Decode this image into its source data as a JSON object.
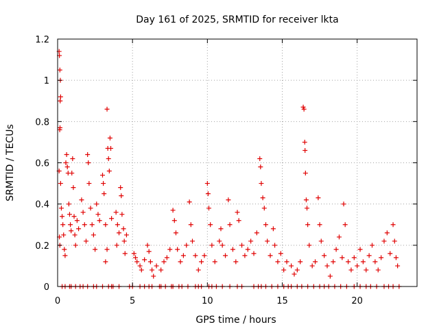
{
  "chart_data": {
    "type": "scatter",
    "title": "Day 161 of 2025, SRMTID for receiver lkta",
    "xlabel": "GPS time / hours",
    "ylabel": "SRMTID / TECUs",
    "xlim": [
      0,
      24
    ],
    "ylim": [
      0,
      1.2
    ],
    "grid": true,
    "xticks": [
      0,
      5,
      10,
      15,
      20
    ],
    "xtick_labels": [
      "0",
      "5",
      "10",
      "15",
      "20"
    ],
    "yticks": [
      0,
      0.2,
      0.4,
      0.6,
      0.8,
      1.0,
      1.2
    ],
    "ytick_labels": [
      "0",
      "0.2",
      "0.4",
      "0.6",
      "0.8",
      "1",
      "1.2"
    ],
    "marker": "+",
    "series": [
      {
        "name": "SRMTID",
        "color": "#e00000",
        "points": [
          [
            0.1,
            1.14
          ],
          [
            0.12,
            1.12
          ],
          [
            0.15,
            1.05
          ],
          [
            0.18,
            1.0
          ],
          [
            0.2,
            0.92
          ],
          [
            0.17,
            0.9
          ],
          [
            0.16,
            0.77
          ],
          [
            0.14,
            0.76
          ],
          [
            0.1,
            0.56
          ],
          [
            0.2,
            0.5
          ],
          [
            0.25,
            0.38
          ],
          [
            0.12,
            0.24
          ],
          [
            0.15,
            0.2
          ],
          [
            0.3,
            0.34
          ],
          [
            0.35,
            0.3
          ],
          [
            0.4,
            0.25
          ],
          [
            0.45,
            0.18
          ],
          [
            0.5,
            0.15
          ],
          [
            0.55,
            0.6
          ],
          [
            0.6,
            0.64
          ],
          [
            0.65,
            0.58
          ],
          [
            0.7,
            0.55
          ],
          [
            0.75,
            0.4
          ],
          [
            0.8,
            0.35
          ],
          [
            0.85,
            0.3
          ],
          [
            0.9,
            0.27
          ],
          [
            0.95,
            0.55
          ],
          [
            1.0,
            0.62
          ],
          [
            1.05,
            0.48
          ],
          [
            1.1,
            0.34
          ],
          [
            1.15,
            0.25
          ],
          [
            1.2,
            0.2
          ],
          [
            1.3,
            0.32
          ],
          [
            1.4,
            0.28
          ],
          [
            1.6,
            0.42
          ],
          [
            1.7,
            0.36
          ],
          [
            1.8,
            0.3
          ],
          [
            1.9,
            0.22
          ],
          [
            2.0,
            0.64
          ],
          [
            2.05,
            0.6
          ],
          [
            2.1,
            0.5
          ],
          [
            2.2,
            0.38
          ],
          [
            2.3,
            0.3
          ],
          [
            2.4,
            0.25
          ],
          [
            2.5,
            0.18
          ],
          [
            2.6,
            0.4
          ],
          [
            2.7,
            0.35
          ],
          [
            2.8,
            0.32
          ],
          [
            3.0,
            0.54
          ],
          [
            3.05,
            0.5
          ],
          [
            3.1,
            0.45
          ],
          [
            3.2,
            0.3
          ],
          [
            3.3,
            0.86
          ],
          [
            3.35,
            0.67
          ],
          [
            3.4,
            0.62
          ],
          [
            3.45,
            0.56
          ],
          [
            3.5,
            0.72
          ],
          [
            3.55,
            0.67
          ],
          [
            3.6,
            0.33
          ],
          [
            3.3,
            0.18
          ],
          [
            3.2,
            0.12
          ],
          [
            3.9,
            0.36
          ],
          [
            4.0,
            0.3
          ],
          [
            4.1,
            0.26
          ],
          [
            4.2,
            0.48
          ],
          [
            4.25,
            0.44
          ],
          [
            4.3,
            0.35
          ],
          [
            4.4,
            0.28
          ],
          [
            4.45,
            0.22
          ],
          [
            4.5,
            0.16
          ],
          [
            4.6,
            0.25
          ],
          [
            3.95,
            0.2
          ],
          [
            5.1,
            0.16
          ],
          [
            5.2,
            0.14
          ],
          [
            5.3,
            0.12
          ],
          [
            5.5,
            0.1
          ],
          [
            5.6,
            0.08
          ],
          [
            5.8,
            0.13
          ],
          [
            6.0,
            0.2
          ],
          [
            6.1,
            0.17
          ],
          [
            6.2,
            0.12
          ],
          [
            6.3,
            0.08
          ],
          [
            6.4,
            0.05
          ],
          [
            6.6,
            0.1
          ],
          [
            6.9,
            0.08
          ],
          [
            7.1,
            0.12
          ],
          [
            7.3,
            0.14
          ],
          [
            7.5,
            0.18
          ],
          [
            7.7,
            0.37
          ],
          [
            7.8,
            0.32
          ],
          [
            7.9,
            0.26
          ],
          [
            8.0,
            0.18
          ],
          [
            8.2,
            0.12
          ],
          [
            8.4,
            0.15
          ],
          [
            8.6,
            0.2
          ],
          [
            8.8,
            0.41
          ],
          [
            8.9,
            0.3
          ],
          [
            9.0,
            0.22
          ],
          [
            9.2,
            0.15
          ],
          [
            9.4,
            0.08
          ],
          [
            9.6,
            0.12
          ],
          [
            9.8,
            0.15
          ],
          [
            10.0,
            0.5
          ],
          [
            10.05,
            0.45
          ],
          [
            10.1,
            0.38
          ],
          [
            10.2,
            0.3
          ],
          [
            10.3,
            0.2
          ],
          [
            10.5,
            0.12
          ],
          [
            10.8,
            0.22
          ],
          [
            10.9,
            0.28
          ],
          [
            11.0,
            0.2
          ],
          [
            11.2,
            0.15
          ],
          [
            11.4,
            0.42
          ],
          [
            11.5,
            0.3
          ],
          [
            11.7,
            0.18
          ],
          [
            11.9,
            0.12
          ],
          [
            12.0,
            0.36
          ],
          [
            12.1,
            0.32
          ],
          [
            12.3,
            0.2
          ],
          [
            12.5,
            0.15
          ],
          [
            12.7,
            0.18
          ],
          [
            12.9,
            0.22
          ],
          [
            13.1,
            0.16
          ],
          [
            13.3,
            0.26
          ],
          [
            13.5,
            0.62
          ],
          [
            13.55,
            0.58
          ],
          [
            13.6,
            0.5
          ],
          [
            13.7,
            0.43
          ],
          [
            13.8,
            0.38
          ],
          [
            13.9,
            0.3
          ],
          [
            14.0,
            0.22
          ],
          [
            14.2,
            0.15
          ],
          [
            14.4,
            0.28
          ],
          [
            14.5,
            0.2
          ],
          [
            14.7,
            0.12
          ],
          [
            14.9,
            0.16
          ],
          [
            15.1,
            0.08
          ],
          [
            15.3,
            0.12
          ],
          [
            15.6,
            0.1
          ],
          [
            15.8,
            0.06
          ],
          [
            16.0,
            0.08
          ],
          [
            16.2,
            0.12
          ],
          [
            16.4,
            0.87
          ],
          [
            16.45,
            0.86
          ],
          [
            16.5,
            0.7
          ],
          [
            16.52,
            0.66
          ],
          [
            16.55,
            0.55
          ],
          [
            16.6,
            0.42
          ],
          [
            16.65,
            0.38
          ],
          [
            16.7,
            0.3
          ],
          [
            16.8,
            0.2
          ],
          [
            17.0,
            0.1
          ],
          [
            17.2,
            0.12
          ],
          [
            17.4,
            0.43
          ],
          [
            17.5,
            0.3
          ],
          [
            17.6,
            0.22
          ],
          [
            17.8,
            0.15
          ],
          [
            18.0,
            0.1
          ],
          [
            18.2,
            0.05
          ],
          [
            18.4,
            0.12
          ],
          [
            18.6,
            0.18
          ],
          [
            18.8,
            0.24
          ],
          [
            19.0,
            0.14
          ],
          [
            19.1,
            0.4
          ],
          [
            19.2,
            0.3
          ],
          [
            19.4,
            0.12
          ],
          [
            19.6,
            0.08
          ],
          [
            19.8,
            0.14
          ],
          [
            20.0,
            0.1
          ],
          [
            20.2,
            0.18
          ],
          [
            20.4,
            0.12
          ],
          [
            20.6,
            0.08
          ],
          [
            20.8,
            0.15
          ],
          [
            21.0,
            0.2
          ],
          [
            21.2,
            0.12
          ],
          [
            21.4,
            0.08
          ],
          [
            21.6,
            0.14
          ],
          [
            21.8,
            0.22
          ],
          [
            22.0,
            0.26
          ],
          [
            22.2,
            0.16
          ],
          [
            22.4,
            0.3
          ],
          [
            22.5,
            0.22
          ],
          [
            22.6,
            0.14
          ],
          [
            22.7,
            0.1
          ]
        ]
      }
    ],
    "zero_points_x": [
      0.3,
      0.5,
      0.8,
      0.9,
      1.2,
      1.5,
      1.7,
      2.0,
      2.4,
      2.6,
      3.0,
      3.4,
      3.6,
      3.7,
      4.1,
      4.8,
      5.0,
      5.5,
      5.8,
      6.1,
      6.3,
      6.8,
      6.9,
      7.2,
      7.6,
      7.7,
      8.1,
      8.3,
      8.7,
      9.2,
      9.4,
      9.6,
      10.1,
      10.3,
      10.6,
      11.0,
      11.5,
      12.0,
      12.3,
      13.1,
      13.4,
      13.6,
      13.9,
      14.3,
      14.7,
      15.1,
      15.4,
      15.6,
      16.0,
      16.3,
      16.7,
      17.1,
      17.5,
      17.8,
      18.1,
      18.5,
      18.9,
      19.3,
      19.8,
      20.2,
      20.6,
      20.9,
      21.3,
      21.8,
      22.1,
      22.4,
      22.8
    ]
  }
}
